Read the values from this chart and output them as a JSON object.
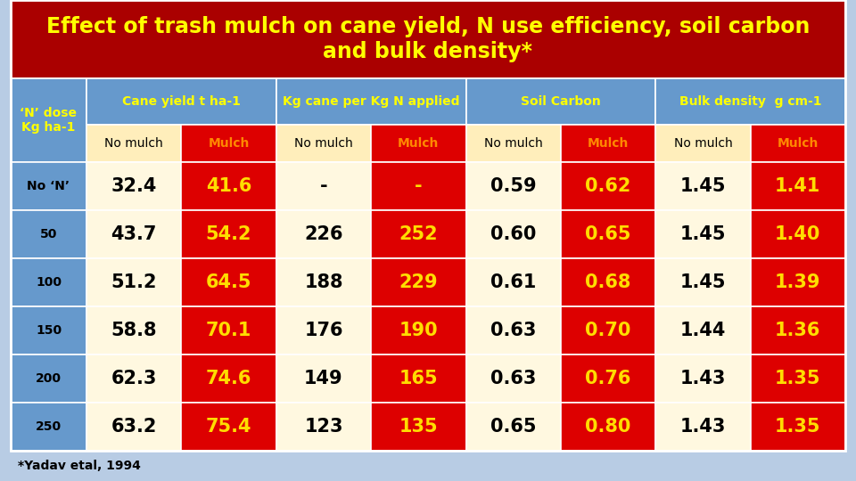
{
  "title": "Effect of trash mulch on cane yield, N use efficiency, soil carbon\nand bulk density*",
  "title_bg": "#aa0000",
  "title_color": "#ffff00",
  "header_bg": "#6699cc",
  "header_color": "#ffff00",
  "subheader_bg_nomulch": "#ffeebb",
  "subheader_bg_mulch": "#dd0000",
  "subheader_color_nomulch": "#000000",
  "subheader_color_mulch": "#ff8800",
  "row_label_bg": "#6699cc",
  "row_label_color": "#000000",
  "cell_bg_nomulch": "#fff8e0",
  "cell_bg_mulch": "#dd0000",
  "cell_color_nomulch": "#000000",
  "cell_color_mulch": "#ffdd00",
  "footer_text": "*Yadav etal, 1994",
  "footer_bg": "#b8cce4",
  "outer_bg": "#b8cce4",
  "col_headers": [
    "Cane yield t ha-1",
    "Kg cane per Kg N applied",
    "Soil Carbon",
    "Bulk density  g cm-1"
  ],
  "sub_headers": [
    "No mulch",
    "Mulch",
    "No mulch",
    "Mulch",
    "No mulch",
    "Mulch",
    "No mulch",
    "Mulch"
  ],
  "row_labels": [
    "No ‘N’",
    "50",
    "100",
    "150",
    "200",
    "250"
  ],
  "rows": [
    [
      "32.4",
      "41.6",
      "-",
      "-",
      "0.59",
      "0.62",
      "1.45",
      "1.41"
    ],
    [
      "43.7",
      "54.2",
      "226",
      "252",
      "0.60",
      "0.65",
      "1.45",
      "1.40"
    ],
    [
      "51.2",
      "64.5",
      "188",
      "229",
      "0.61",
      "0.68",
      "1.45",
      "1.39"
    ],
    [
      "58.8",
      "70.1",
      "176",
      "190",
      "0.63",
      "0.70",
      "1.44",
      "1.36"
    ],
    [
      "62.3",
      "74.6",
      "149",
      "165",
      "0.63",
      "0.76",
      "1.43",
      "1.35"
    ],
    [
      "63.2",
      "75.4",
      "123",
      "135",
      "0.65",
      "0.80",
      "1.43",
      "1.35"
    ]
  ],
  "n_dose_label": "‘N’ dose\nKg ha-1"
}
